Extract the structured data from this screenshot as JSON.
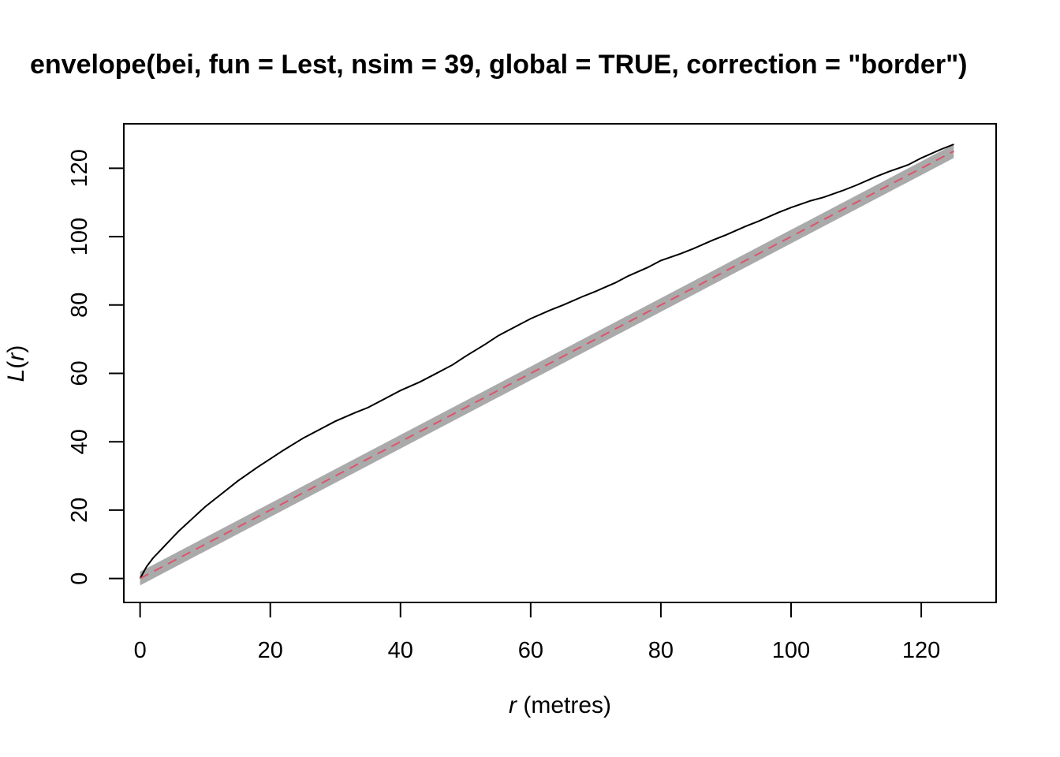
{
  "chart_data": {
    "type": "line",
    "title": "envelope(bei, fun = Lest, nsim = 39, global = TRUE, correction = \"border\")",
    "xlabel": {
      "var": "r",
      "unit": " (metres)"
    },
    "ylabel": {
      "var": "L",
      "paren_open": "(",
      "arg": "r",
      "paren_close": ")"
    },
    "xlim": [
      -2.5,
      131.5
    ],
    "ylim": [
      -7,
      133
    ],
    "xticks": [
      0,
      20,
      40,
      60,
      80,
      100,
      120
    ],
    "yticks": [
      0,
      20,
      40,
      60,
      80,
      100,
      120
    ],
    "envelope": {
      "color": "#aaaaaa",
      "x": [
        0,
        125
      ],
      "lower": [
        -2,
        123
      ],
      "upper": [
        2,
        127
      ]
    },
    "series": [
      {
        "role": "observed",
        "color": "#000000",
        "dash": "solid",
        "x": [
          0,
          1,
          2,
          3,
          4,
          5,
          6,
          8,
          10,
          12,
          15,
          18,
          20,
          22,
          25,
          28,
          30,
          33,
          35,
          38,
          40,
          43,
          45,
          48,
          50,
          53,
          55,
          58,
          60,
          63,
          65,
          68,
          70,
          73,
          75,
          78,
          80,
          83,
          85,
          88,
          90,
          93,
          95,
          98,
          100,
          103,
          105,
          108,
          110,
          113,
          115,
          118,
          120,
          123,
          125
        ],
        "y": [
          0,
          3.5,
          6,
          8,
          10,
          12,
          14,
          17.5,
          21,
          24,
          28.5,
          32.5,
          35,
          37.5,
          41,
          44,
          46,
          48.5,
          50,
          53,
          55,
          57.5,
          59.5,
          62.5,
          65,
          68.5,
          71,
          74,
          76,
          78.5,
          80,
          82.5,
          84,
          86.5,
          88.5,
          91,
          93,
          95,
          96.5,
          99,
          100.5,
          103,
          104.5,
          107,
          108.5,
          110.5,
          111.5,
          113.5,
          115,
          117.5,
          119,
          121,
          123,
          125.5,
          127
        ]
      },
      {
        "role": "theoretical",
        "color": "#df536b",
        "dash": "dashed",
        "x": [
          0,
          125
        ],
        "y": [
          0,
          125
        ]
      }
    ]
  }
}
